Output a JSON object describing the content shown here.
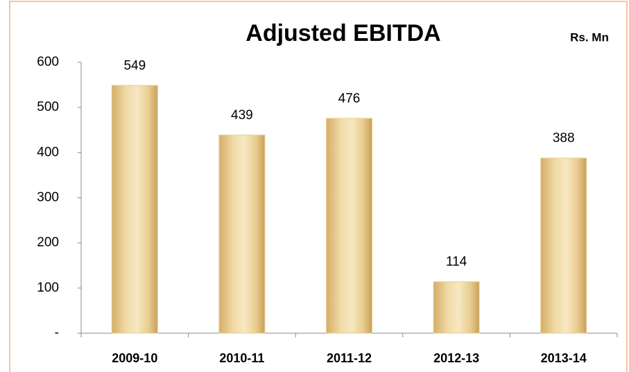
{
  "chart_data": {
    "type": "bar",
    "title": "Adjusted EBITDA",
    "subtitle": "Rs. Mn",
    "categories": [
      "2009-10",
      "2010-11",
      "2011-12",
      "2012-13",
      "2013-14"
    ],
    "values": [
      549,
      439,
      476,
      114,
      388
    ],
    "color": "#e8cf95",
    "ylim": [
      0,
      600
    ],
    "yticks": [
      {
        "value": 0,
        "label": "-"
      },
      100,
      200,
      300,
      400,
      500,
      600
    ],
    "grid": false
  }
}
